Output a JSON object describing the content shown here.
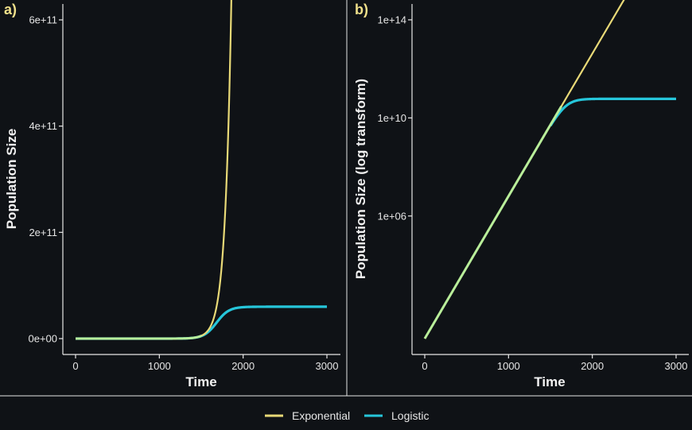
{
  "colors": {
    "background": "#0f1216",
    "axis": "#e6e6e6",
    "panel_tag": "#f0e08a",
    "exponential": "#e8d977",
    "logistic": "#26c6da",
    "overlap": "#b9ee9a"
  },
  "legend": {
    "position": "bottom",
    "items": [
      {
        "label": "Exponential",
        "color": "#e8d977"
      },
      {
        "label": "Logistic",
        "color": "#26c6da"
      }
    ]
  },
  "chart_data": [
    {
      "panel": "a)",
      "type": "line",
      "xlabel": "Time",
      "ylabel": "Population Size",
      "xlim": [
        0,
        3000
      ],
      "ylim": [
        0,
        600000000000.0
      ],
      "x_ticks": [
        0,
        1000,
        2000,
        3000
      ],
      "x_tick_labels": [
        "0",
        "1000",
        "2000",
        "3000"
      ],
      "y_ticks": [
        0,
        200000000000.0,
        400000000000.0,
        600000000000.0
      ],
      "y_tick_labels": [
        "0e+00",
        "2e+11",
        "4e+11",
        "6e+11"
      ],
      "grid": false,
      "series": [
        {
          "name": "Exponential",
          "x_start": 0,
          "x_end": 2000,
          "y0": 10,
          "rate": 0.01338
        },
        {
          "name": "Logistic",
          "x_start": 0,
          "x_end": 3000,
          "y0": 10,
          "rate": 0.01338,
          "capacity": 60000000000.0
        }
      ]
    },
    {
      "panel": "b)",
      "type": "line",
      "xlabel": "Time",
      "ylabel": "Population Size (log transform)",
      "xlim": [
        0,
        3000
      ],
      "ylim": [
        10,
        1e+16
      ],
      "y_scale": "log",
      "x_ticks": [
        0,
        1000,
        2000,
        3000
      ],
      "x_tick_labels": [
        "0",
        "1000",
        "2000",
        "3000"
      ],
      "y_ticks": [
        1000000.0,
        10000000000.0,
        100000000000000.0
      ],
      "y_tick_labels": [
        "1e+06",
        "1e+10",
        "1e+14"
      ],
      "grid": false,
      "series": [
        {
          "name": "Exponential",
          "x_start": 0,
          "x_end": 3000,
          "y0": 10,
          "rate": 0.01338
        },
        {
          "name": "Logistic",
          "x_start": 0,
          "x_end": 3000,
          "y0": 10,
          "rate": 0.01338,
          "capacity": 60000000000.0
        }
      ]
    }
  ]
}
